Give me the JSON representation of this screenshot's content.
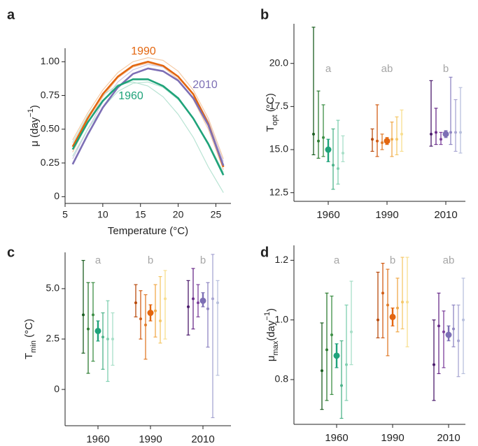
{
  "chart_data": [
    {
      "panel": "a",
      "type": "line",
      "x": [
        6,
        8,
        10,
        12,
        14,
        16,
        18,
        20,
        22,
        24,
        26
      ],
      "series": [
        {
          "color": "#f5cba6",
          "values": [
            0.42,
            0.62,
            0.79,
            0.92,
            1.0,
            1.03,
            1.01,
            0.93,
            0.79,
            0.58,
            0.28
          ]
        },
        {
          "color": "#f5cba6",
          "values": [
            0.33,
            0.55,
            0.74,
            0.88,
            0.96,
            0.99,
            0.96,
            0.87,
            0.72,
            0.5,
            0.2
          ]
        },
        {
          "color": "#cfc8e4",
          "values": [
            0.28,
            0.5,
            0.7,
            0.85,
            0.94,
            0.98,
            0.96,
            0.89,
            0.76,
            0.56,
            0.26
          ]
        },
        {
          "color": "#b8e3d3",
          "values": [
            0.4,
            0.6,
            0.75,
            0.83,
            0.85,
            0.82,
            0.74,
            0.61,
            0.44,
            0.22,
            0.03
          ]
        },
        {
          "color": "#b8e3d3",
          "values": [
            0.3,
            0.5,
            0.66,
            0.78,
            0.84,
            0.85,
            0.81,
            0.72,
            0.58,
            0.4,
            0.18
          ]
        },
        {
          "name": "1990",
          "color": "#e3660f",
          "values": [
            0.37,
            0.58,
            0.76,
            0.89,
            0.97,
            1.0,
            0.97,
            0.89,
            0.76,
            0.54,
            0.22
          ]
        },
        {
          "name": "2010",
          "color": "#7d6fb5",
          "values": [
            0.24,
            0.46,
            0.66,
            0.81,
            0.91,
            0.95,
            0.93,
            0.86,
            0.73,
            0.53,
            0.23
          ]
        },
        {
          "name": "1960",
          "color": "#1fa37a",
          "values": [
            0.35,
            0.55,
            0.71,
            0.82,
            0.87,
            0.87,
            0.82,
            0.73,
            0.58,
            0.39,
            0.16
          ]
        }
      ],
      "xlim": [
        5,
        27
      ],
      "xticks": [
        5,
        10,
        15,
        20,
        25
      ],
      "ylim": [
        -0.05,
        1.1
      ],
      "yticks": [
        0,
        0.25,
        {
          "value": 0.5,
          "label": "0.50"
        },
        0.75,
        {
          "value": 1,
          "label": "1.00"
        }
      ],
      "xlabel": "Temperature (°C)",
      "ylabel": [
        {
          "text": "μ (day"
        },
        {
          "text": "−1",
          "shift": "super"
        },
        {
          "text": ")"
        }
      ]
    },
    {
      "panel": "b",
      "type": "errorbar",
      "categories": [
        "1960",
        "1990",
        "2010"
      ],
      "ylim": [
        12,
        22.3
      ],
      "yticks": [
        12.5,
        {
          "value": 15,
          "label": "15.0"
        },
        17.5,
        {
          "value": 20,
          "label": "20.0"
        }
      ],
      "ylabel": [
        {
          "text": "T"
        },
        {
          "text": "opt",
          "shift": "sub"
        },
        {
          "text": " (°C)"
        }
      ],
      "groups": [
        {
          "letter": "a",
          "mean": {
            "value": 15.0,
            "low": 14.3,
            "high": 15.6,
            "color": "#1fa37a"
          },
          "points": [
            {
              "value": 15.9,
              "low": 14.7,
              "high": 22.1,
              "color": "#1b5e20"
            },
            {
              "value": 15.5,
              "low": 14.5,
              "high": 18.4,
              "color": "#2e7d32"
            },
            {
              "value": 15.7,
              "low": 14.6,
              "high": 17.6,
              "color": "#3d8f45"
            },
            {
              "value": 14.1,
              "low": 12.7,
              "high": 16.2,
              "color": "#4db38a"
            },
            {
              "value": 13.9,
              "low": 13.0,
              "high": 16.7,
              "color": "#7fcfb0"
            },
            {
              "value": 14.8,
              "low": 14.3,
              "high": 15.8,
              "color": "#a8dfc8"
            }
          ]
        },
        {
          "letter": "ab",
          "mean": {
            "value": 15.5,
            "low": 15.3,
            "high": 15.7,
            "color": "#e3660f"
          },
          "points": [
            {
              "value": 15.6,
              "low": 14.9,
              "high": 16.2,
              "color": "#b84a0c"
            },
            {
              "value": 15.5,
              "low": 14.6,
              "high": 17.6,
              "color": "#d35e16"
            },
            {
              "value": 15.4,
              "low": 15.0,
              "high": 15.9,
              "color": "#e07b2a"
            },
            {
              "value": 15.6,
              "low": 14.6,
              "high": 16.6,
              "color": "#f0a94a"
            },
            {
              "value": 15.6,
              "low": 14.7,
              "high": 16.9,
              "color": "#f5c86a"
            },
            {
              "value": 15.9,
              "low": 14.9,
              "high": 17.3,
              "color": "#f8de8e"
            }
          ]
        },
        {
          "letter": "b",
          "mean": {
            "value": 15.9,
            "low": 15.7,
            "high": 16.1,
            "color": "#7d6fb5"
          },
          "points": [
            {
              "value": 15.9,
              "low": 15.2,
              "high": 19.0,
              "color": "#4a1a6b"
            },
            {
              "value": 16.0,
              "low": 15.3,
              "high": 17.4,
              "color": "#6a2c8a"
            },
            {
              "value": 15.6,
              "low": 15.3,
              "high": 16.0,
              "color": "#7b3f9a"
            },
            {
              "value": 16.0,
              "low": 15.3,
              "high": 19.2,
              "color": "#8f86c2"
            },
            {
              "value": 16.0,
              "low": 14.9,
              "high": 17.9,
              "color": "#a8a6d2"
            },
            {
              "value": 16.0,
              "low": 14.8,
              "high": 18.6,
              "color": "#b8c0dd"
            }
          ]
        }
      ]
    },
    {
      "panel": "c",
      "type": "errorbar",
      "categories": [
        "1960",
        "1990",
        "2010"
      ],
      "ylim": [
        -1.8,
        6.8
      ],
      "yticks": [
        0,
        2.5,
        {
          "value": 5,
          "label": "5.0"
        }
      ],
      "ylabel": [
        {
          "text": "T"
        },
        {
          "text": "min",
          "shift": "sub"
        },
        {
          "text": " (°C)"
        }
      ],
      "groups": [
        {
          "letter": "a",
          "mean": {
            "value": 2.9,
            "low": 2.4,
            "high": 3.4,
            "color": "#1fa37a"
          },
          "points": [
            {
              "value": 3.7,
              "low": 1.8,
              "high": 6.4,
              "color": "#1b5e20"
            },
            {
              "value": 3.0,
              "low": 0.8,
              "high": 5.3,
              "color": "#2e7d32"
            },
            {
              "value": 3.7,
              "low": 1.4,
              "high": 5.3,
              "color": "#3d8f45"
            },
            {
              "value": 2.6,
              "low": 1.0,
              "high": 3.8,
              "color": "#4db38a"
            },
            {
              "value": 2.5,
              "low": 0.4,
              "high": 4.4,
              "color": "#7fcfb0"
            },
            {
              "value": 2.5,
              "low": 1.2,
              "high": 3.8,
              "color": "#a8dfc8"
            }
          ]
        },
        {
          "letter": "b",
          "mean": {
            "value": 3.8,
            "low": 3.4,
            "high": 4.2,
            "color": "#e3660f"
          },
          "points": [
            {
              "value": 4.3,
              "low": 3.6,
              "high": 5.2,
              "color": "#b84a0c"
            },
            {
              "value": 3.5,
              "low": 2.5,
              "high": 4.9,
              "color": "#d35e16"
            },
            {
              "value": 3.2,
              "low": 1.5,
              "high": 4.7,
              "color": "#e07b2a"
            },
            {
              "value": 3.9,
              "low": 2.6,
              "high": 5.2,
              "color": "#f0a94a"
            },
            {
              "value": 3.4,
              "low": 2.3,
              "high": 5.6,
              "color": "#f5c86a"
            },
            {
              "value": 4.5,
              "low": 2.5,
              "high": 5.9,
              "color": "#f8de8e"
            }
          ]
        },
        {
          "letter": "b",
          "mean": {
            "value": 4.4,
            "low": 4.1,
            "high": 4.8,
            "color": "#7d6fb5"
          },
          "points": [
            {
              "value": 4.1,
              "low": 2.7,
              "high": 5.4,
              "color": "#4a1a6b"
            },
            {
              "value": 4.5,
              "low": 3.0,
              "high": 6.0,
              "color": "#6a2c8a"
            },
            {
              "value": 4.3,
              "low": 3.6,
              "high": 5.2,
              "color": "#7b3f9a"
            },
            {
              "value": 4.0,
              "low": 2.1,
              "high": 5.3,
              "color": "#8f86c2"
            },
            {
              "value": 4.5,
              "low": -1.4,
              "high": 6.7,
              "color": "#a8a6d2"
            },
            {
              "value": 4.3,
              "low": 0.7,
              "high": 5.4,
              "color": "#b8c0dd"
            }
          ]
        }
      ]
    },
    {
      "panel": "d",
      "type": "errorbar",
      "categories": [
        "1960",
        "1990",
        "2010"
      ],
      "ylim": [
        0.65,
        1.25
      ],
      "yticks": [
        0.8,
        {
          "value": 1,
          "label": "1.0"
        },
        1.2
      ],
      "ylabel": [
        {
          "text": "μ"
        },
        {
          "text": "max",
          "shift": "sub"
        },
        {
          "text": "(day"
        },
        {
          "text": "−1",
          "shift": "super"
        },
        {
          "text": ")"
        }
      ],
      "groups": [
        {
          "letter": "a",
          "mean": {
            "value": 0.88,
            "low": 0.84,
            "high": 0.92,
            "color": "#1fa37a"
          },
          "points": [
            {
              "value": 0.83,
              "low": 0.7,
              "high": 0.99,
              "color": "#1b5e20"
            },
            {
              "value": 0.9,
              "low": 0.73,
              "high": 1.09,
              "color": "#2e7d32"
            },
            {
              "value": 0.95,
              "low": 0.75,
              "high": 1.08,
              "color": "#3d8f45"
            },
            {
              "value": 0.78,
              "low": 0.67,
              "high": 0.93,
              "color": "#4db38a"
            },
            {
              "value": 0.85,
              "low": 0.73,
              "high": 1.05,
              "color": "#7fcfb0"
            },
            {
              "value": 0.96,
              "low": 0.85,
              "high": 1.13,
              "color": "#a8dfc8"
            }
          ]
        },
        {
          "letter": "b",
          "mean": {
            "value": 1.01,
            "low": 0.98,
            "high": 1.04,
            "color": "#e3660f"
          },
          "points": [
            {
              "value": 1.0,
              "low": 0.94,
              "high": 1.16,
              "color": "#b84a0c"
            },
            {
              "value": 1.09,
              "low": 0.94,
              "high": 1.19,
              "color": "#d35e16"
            },
            {
              "value": 1.05,
              "low": 0.88,
              "high": 1.17,
              "color": "#e07b2a"
            },
            {
              "value": 1.04,
              "low": 0.96,
              "high": 1.14,
              "color": "#f0a94a"
            },
            {
              "value": 1.06,
              "low": 0.97,
              "high": 1.21,
              "color": "#f5c86a"
            },
            {
              "value": 1.06,
              "low": 0.91,
              "high": 1.21,
              "color": "#f8de8e"
            }
          ]
        },
        {
          "letter": "ab",
          "mean": {
            "value": 0.95,
            "low": 0.93,
            "high": 0.98,
            "color": "#7d6fb5"
          },
          "points": [
            {
              "value": 0.85,
              "low": 0.73,
              "high": 1.0,
              "color": "#4a1a6b"
            },
            {
              "value": 0.98,
              "low": 0.82,
              "high": 1.09,
              "color": "#6a2c8a"
            },
            {
              "value": 0.96,
              "low": 0.84,
              "high": 1.03,
              "color": "#7b3f9a"
            },
            {
              "value": 0.97,
              "low": 0.91,
              "high": 1.05,
              "color": "#8f86c2"
            },
            {
              "value": 0.93,
              "low": 0.81,
              "high": 1.05,
              "color": "#a8a6d2"
            },
            {
              "value": 1.0,
              "low": 0.82,
              "high": 1.14,
              "color": "#b8c0dd"
            }
          ]
        }
      ]
    }
  ]
}
